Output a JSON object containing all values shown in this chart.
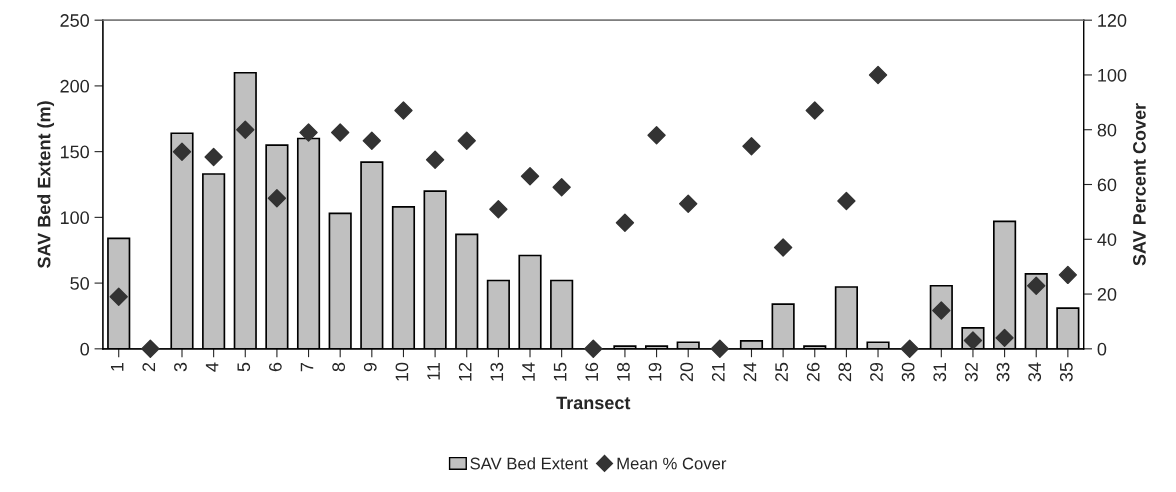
{
  "chart_data": {
    "type": "bar",
    "xlabel": "Transect",
    "ylabel": "SAV Bed Extent (m)",
    "y2label": "SAV Percent Cover",
    "categories": [
      "1",
      "2",
      "3",
      "4",
      "5",
      "6",
      "7",
      "8",
      "9",
      "10",
      "11",
      "12",
      "13",
      "14",
      "15",
      "16",
      "18",
      "19",
      "20",
      "21",
      "24",
      "25",
      "26",
      "28",
      "29",
      "30",
      "31",
      "32",
      "33",
      "34",
      "35"
    ],
    "series": [
      {
        "name": "SAV Bed Extent",
        "color": "#c0c0c0",
        "values": [
          84,
          0,
          164,
          133,
          210,
          155,
          160,
          103,
          142,
          108,
          120,
          87,
          52,
          71,
          52,
          0,
          2,
          2,
          5,
          0,
          6,
          34,
          2,
          47,
          5,
          0,
          48,
          16,
          97,
          57,
          31
        ]
      },
      {
        "name": "Mean % Cover",
        "type": "scatter",
        "axis": "y2",
        "color": "#333333",
        "marker": "diamond",
        "values": [
          19,
          0,
          72,
          70,
          80,
          55,
          79,
          79,
          76,
          87,
          69,
          76,
          51,
          63,
          59,
          0,
          46,
          78,
          53,
          0,
          74,
          37,
          87,
          54,
          100,
          0,
          14,
          3,
          4,
          23,
          27
        ]
      }
    ],
    "ylim": [
      0,
      250
    ],
    "yticks": [
      0,
      50,
      100,
      150,
      200,
      250
    ],
    "y2lim": [
      0,
      120
    ],
    "y2ticks": [
      0,
      20,
      40,
      60,
      80,
      100,
      120
    ],
    "legend": "bottom",
    "grid": false
  }
}
